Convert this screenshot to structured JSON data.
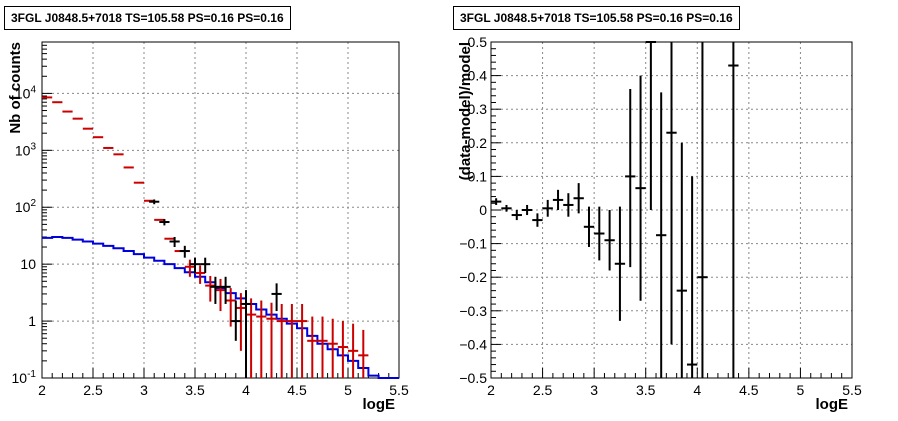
{
  "chart_data": [
    {
      "type": "line",
      "title": "3FGL J0848.5+7018 TS=105.58 PS=0.16 PS=0.16",
      "xlabel": "logE",
      "ylabel": "Nb of counts",
      "xlim": [
        2,
        5.5
      ],
      "ylim": [
        0.1,
        80000
      ],
      "yscale": "log",
      "grid": true,
      "x_ticks": [
        "2",
        "2.5",
        "3",
        "3.5",
        "4",
        "4.5",
        "5",
        "5.5"
      ],
      "y_ticks": [
        "10^-1",
        "1",
        "10",
        "10^2",
        "10^3",
        "10^4"
      ],
      "series": [
        {
          "role": "data",
          "color": "#000000",
          "points": [
            {
              "x": 3.1,
              "y": 125,
              "ylo": 113,
              "yhi": 137
            },
            {
              "x": 3.2,
              "y": 55,
              "ylo": 48,
              "yhi": 62
            },
            {
              "x": 3.3,
              "y": 25,
              "ylo": 20,
              "yhi": 30
            },
            {
              "x": 3.4,
              "y": 17,
              "ylo": 13,
              "yhi": 21
            },
            {
              "x": 3.5,
              "y": 10,
              "ylo": 7,
              "yhi": 13
            },
            {
              "x": 3.6,
              "y": 10,
              "ylo": 7,
              "yhi": 13
            },
            {
              "x": 3.7,
              "y": 4,
              "ylo": 2,
              "yhi": 6
            },
            {
              "x": 3.8,
              "y": 4,
              "ylo": 2,
              "yhi": 6
            },
            {
              "x": 3.9,
              "y": 1,
              "ylo": 0.45,
              "yhi": 2.3
            },
            {
              "x": 4.0,
              "y": 2,
              "ylo": 0.1,
              "yhi": 3.5
            },
            {
              "x": 4.3,
              "y": 3,
              "ylo": 1.5,
              "yhi": 4.6
            }
          ]
        },
        {
          "role": "model",
          "color": "#cc0000",
          "points": [
            {
              "x": 2.05,
              "y": 8500
            },
            {
              "x": 2.15,
              "y": 7000
            },
            {
              "x": 2.25,
              "y": 4800
            },
            {
              "x": 2.35,
              "y": 3600
            },
            {
              "x": 2.45,
              "y": 2400
            },
            {
              "x": 2.55,
              "y": 1700
            },
            {
              "x": 2.65,
              "y": 1100
            },
            {
              "x": 2.75,
              "y": 850
            },
            {
              "x": 2.85,
              "y": 500
            },
            {
              "x": 2.95,
              "y": 270
            },
            {
              "x": 3.05,
              "y": 130
            },
            {
              "x": 3.15,
              "y": 60
            },
            {
              "x": 3.25,
              "y": 28
            },
            {
              "x": 3.35,
              "y": 17
            },
            {
              "x": 3.45,
              "y": 9,
              "ylo": 6,
              "yhi": 12
            },
            {
              "x": 3.55,
              "y": 7,
              "ylo": 4.5,
              "yhi": 9.5
            },
            {
              "x": 3.65,
              "y": 4.2,
              "ylo": 2.2,
              "yhi": 6.2
            },
            {
              "x": 3.75,
              "y": 3.5,
              "ylo": 1.5,
              "yhi": 5.5
            },
            {
              "x": 3.85,
              "y": 2.3,
              "ylo": 0.8,
              "yhi": 3.8
            },
            {
              "x": 3.95,
              "y": 1.7,
              "ylo": 0.3,
              "yhi": 3.1
            },
            {
              "x": 4.05,
              "y": 1.3,
              "ylo": 0.1,
              "yhi": 2.5
            },
            {
              "x": 4.15,
              "y": 1.2,
              "ylo": 0.1,
              "yhi": 2.3
            },
            {
              "x": 4.25,
              "y": 1.1,
              "ylo": 0.1,
              "yhi": 2.1
            },
            {
              "x": 4.35,
              "y": 1.0,
              "ylo": 0.1,
              "yhi": 2.0
            },
            {
              "x": 4.45,
              "y": 1.0,
              "ylo": 0.1,
              "yhi": 2.0
            },
            {
              "x": 4.55,
              "y": 1.0,
              "ylo": 0.1,
              "yhi": 2.0
            },
            {
              "x": 4.65,
              "y": 0.45,
              "ylo": 0.1,
              "yhi": 1.2
            },
            {
              "x": 4.75,
              "y": 0.45,
              "ylo": 0.1,
              "yhi": 1.2
            },
            {
              "x": 4.85,
              "y": 0.4,
              "ylo": 0.1,
              "yhi": 1.1
            },
            {
              "x": 4.95,
              "y": 0.35,
              "ylo": 0.1,
              "yhi": 1.0
            },
            {
              "x": 5.05,
              "y": 0.3,
              "ylo": 0.1,
              "yhi": 0.9
            },
            {
              "x": 5.15,
              "y": 0.25,
              "ylo": 0.1,
              "yhi": 0.7
            }
          ]
        },
        {
          "role": "source-model",
          "color": "#0000dd",
          "step_edges": [
            2.0,
            2.1,
            2.2,
            2.3,
            2.4,
            2.5,
            2.6,
            2.7,
            2.8,
            2.9,
            3.0,
            3.1,
            3.2,
            3.3,
            3.4,
            3.5,
            3.6,
            3.7,
            3.8,
            3.9,
            4.0,
            4.1,
            4.2,
            4.3,
            4.4,
            4.5,
            4.6,
            4.7,
            4.8,
            4.9,
            5.0,
            5.1,
            5.2,
            5.3,
            5.4,
            5.5
          ],
          "values": [
            29,
            30,
            29,
            27,
            25,
            23,
            21,
            19,
            17,
            15,
            13,
            11.5,
            10,
            8.5,
            7.2,
            6,
            4.8,
            3.8,
            3.1,
            2.5,
            2.0,
            1.6,
            1.3,
            1.1,
            0.9,
            0.75,
            0.55,
            0.4,
            0.32,
            0.25,
            0.2,
            0.15,
            0.11,
            0.1,
            0.1
          ]
        }
      ]
    },
    {
      "type": "scatter",
      "title": "3FGL J0848.5+7018 TS=105.58 PS=0.16 PS=0.16",
      "xlabel": "logE",
      "ylabel": "(data-model)/model",
      "xlim": [
        2,
        5.5
      ],
      "ylim": [
        -0.5,
        0.5
      ],
      "grid": true,
      "x_ticks": [
        "2",
        "2.5",
        "3",
        "3.5",
        "4",
        "4.5",
        "5",
        "5.5"
      ],
      "y_ticks": [
        "−0.5",
        "−0.4",
        "−0.3",
        "−0.2",
        "−0.1",
        "0",
        "0.1",
        "0.2",
        "0.3",
        "0.4",
        "0.5"
      ],
      "series": [
        {
          "color": "#000000",
          "points": [
            {
              "x": 2.05,
              "y": 0.025,
              "ylo": 0.015,
              "yhi": 0.035
            },
            {
              "x": 2.15,
              "y": 0.005,
              "ylo": -0.005,
              "yhi": 0.015
            },
            {
              "x": 2.25,
              "y": -0.015,
              "ylo": -0.03,
              "yhi": 0.0
            },
            {
              "x": 2.35,
              "y": 0.0,
              "ylo": -0.015,
              "yhi": 0.015
            },
            {
              "x": 2.45,
              "y": -0.03,
              "ylo": -0.05,
              "yhi": -0.01
            },
            {
              "x": 2.55,
              "y": 0.005,
              "ylo": -0.02,
              "yhi": 0.03
            },
            {
              "x": 2.65,
              "y": 0.03,
              "ylo": 0.0,
              "yhi": 0.06
            },
            {
              "x": 2.75,
              "y": 0.015,
              "ylo": -0.02,
              "yhi": 0.05
            },
            {
              "x": 2.85,
              "y": 0.035,
              "ylo": -0.01,
              "yhi": 0.08
            },
            {
              "x": 2.95,
              "y": -0.05,
              "ylo": -0.11,
              "yhi": 0.01
            },
            {
              "x": 3.05,
              "y": -0.07,
              "ylo": -0.15,
              "yhi": 0.01
            },
            {
              "x": 3.15,
              "y": -0.09,
              "ylo": -0.18,
              "yhi": 0.0
            },
            {
              "x": 3.25,
              "y": -0.16,
              "ylo": -0.33,
              "yhi": 0.01
            },
            {
              "x": 3.35,
              "y": 0.1,
              "ylo": -0.17,
              "yhi": 0.36
            },
            {
              "x": 3.45,
              "y": 0.065,
              "ylo": -0.27,
              "yhi": 0.4
            },
            {
              "x": 3.55,
              "y": 0.5,
              "ylo": 0.0,
              "yhi": 0.5
            },
            {
              "x": 3.65,
              "y": -0.075,
              "ylo": -0.5,
              "yhi": 0.35
            },
            {
              "x": 3.75,
              "y": 0.23,
              "ylo": -0.4,
              "yhi": 0.5
            },
            {
              "x": 3.85,
              "y": -0.24,
              "ylo": -0.5,
              "yhi": 0.2
            },
            {
              "x": 3.95,
              "y": -0.46,
              "ylo": -0.5,
              "yhi": 0.1
            },
            {
              "x": 4.05,
              "y": -0.2,
              "ylo": -0.5,
              "yhi": 0.5
            },
            {
              "x": 4.35,
              "y": 0.43,
              "ylo": -0.5,
              "yhi": 0.5
            }
          ]
        }
      ]
    }
  ]
}
